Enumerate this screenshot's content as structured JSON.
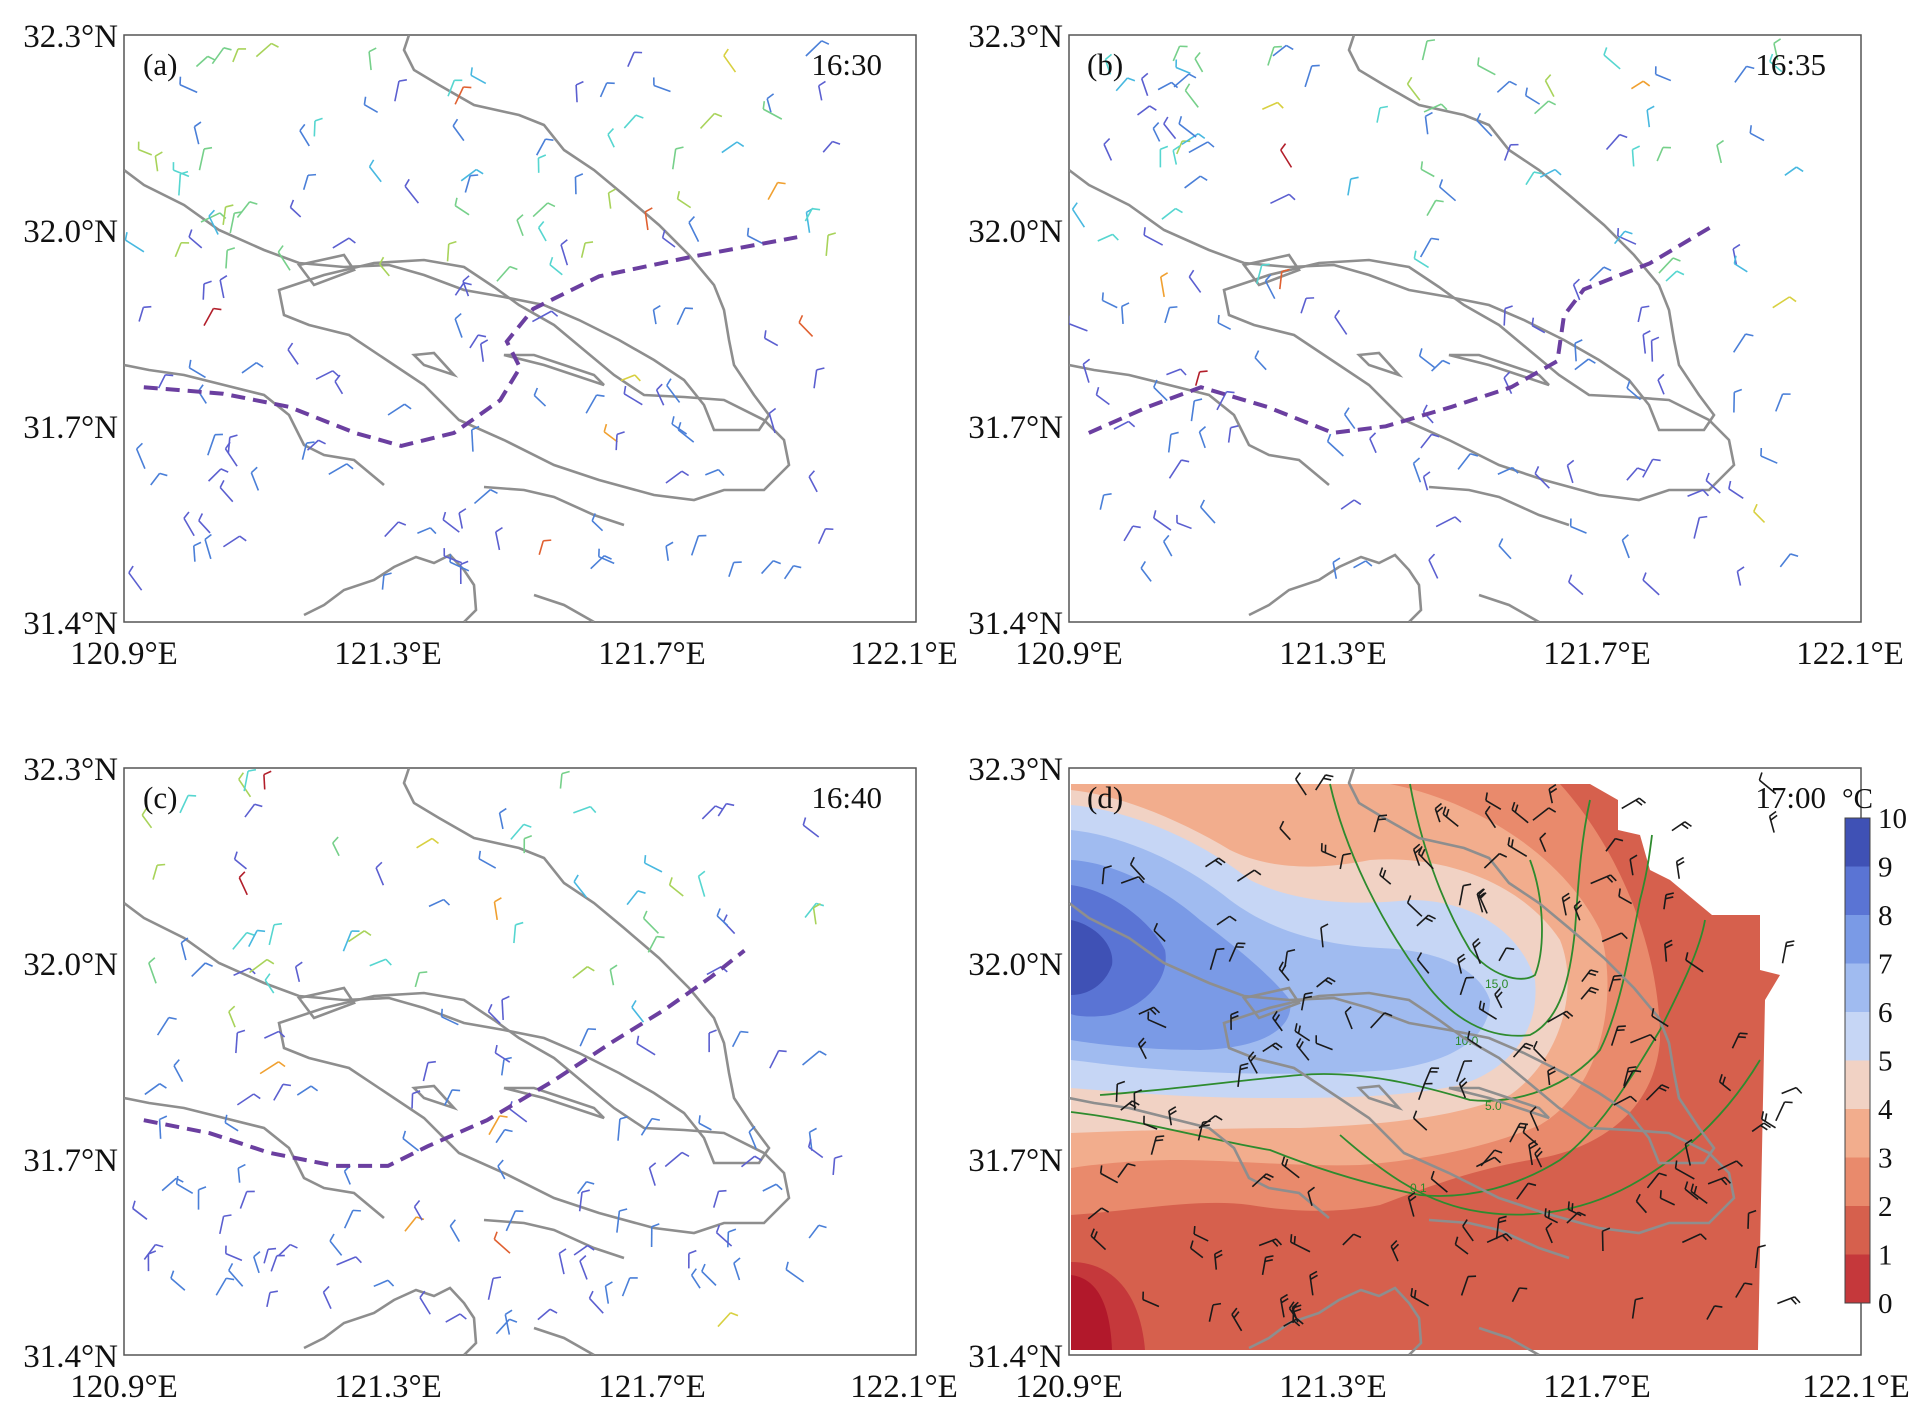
{
  "axes": {
    "lon_ticks": [
      "120.9°E",
      "121.3°E",
      "121.7°E",
      "122.1°E"
    ],
    "lat_ticks": [
      "32.3°N",
      "32.0°N",
      "31.7°N",
      "31.4°N"
    ],
    "lon_range": [
      120.9,
      122.1
    ],
    "lat_range": [
      31.4,
      32.3
    ]
  },
  "panels": [
    {
      "label": "(a)",
      "time": "16:30",
      "front_line": [
        [
          120.93,
          31.76
        ],
        [
          121.05,
          31.75
        ],
        [
          121.15,
          31.73
        ],
        [
          121.25,
          31.69
        ],
        [
          121.32,
          31.67
        ],
        [
          121.4,
          31.69
        ],
        [
          121.47,
          31.74
        ],
        [
          121.5,
          31.79
        ],
        [
          121.48,
          31.83
        ],
        [
          121.52,
          31.88
        ],
        [
          121.62,
          31.93
        ],
        [
          121.76,
          31.96
        ],
        [
          121.92,
          31.99
        ]
      ]
    },
    {
      "label": "(b)",
      "time": "16:35",
      "front_line": [
        [
          120.93,
          31.69
        ],
        [
          121.02,
          31.73
        ],
        [
          121.1,
          31.76
        ],
        [
          121.2,
          31.73
        ],
        [
          121.3,
          31.69
        ],
        [
          121.38,
          31.7
        ],
        [
          121.48,
          31.73
        ],
        [
          121.57,
          31.76
        ],
        [
          121.64,
          31.8
        ],
        [
          121.65,
          31.87
        ],
        [
          121.68,
          31.91
        ],
        [
          121.78,
          31.95
        ],
        [
          121.88,
          32.01
        ]
      ]
    },
    {
      "label": "(c)",
      "time": "16:40",
      "front_line": [
        [
          120.93,
          31.76
        ],
        [
          121.03,
          31.74
        ],
        [
          121.12,
          31.71
        ],
        [
          121.22,
          31.69
        ],
        [
          121.3,
          31.69
        ],
        [
          121.36,
          31.72
        ],
        [
          121.45,
          31.76
        ],
        [
          121.55,
          31.82
        ],
        [
          121.64,
          31.88
        ],
        [
          121.72,
          31.93
        ],
        [
          121.79,
          31.98
        ],
        [
          121.84,
          32.02
        ]
      ]
    },
    {
      "label": "(d)",
      "time": "17:00"
    }
  ],
  "colorbar": {
    "unit": "°C",
    "ticks": [
      "10",
      "9",
      "8",
      "7",
      "6",
      "5",
      "4",
      "3",
      "2",
      "1",
      "0"
    ],
    "colors": [
      "#3f51b5",
      "#5a74d4",
      "#7a9ae6",
      "#a0bbf0",
      "#c6d6f5",
      "#f1d2c4",
      "#f2ad8d",
      "#e98a6c",
      "#d6604d",
      "#c5383b",
      "#b2182b"
    ]
  },
  "contour_labels": [
    "15.0",
    "10.0",
    "5.0",
    "0.1"
  ]
}
